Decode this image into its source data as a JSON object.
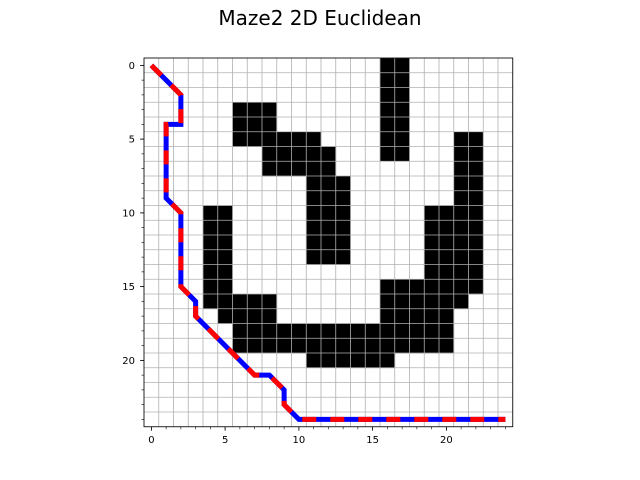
{
  "chart_data": {
    "type": "heatmap",
    "title": "Maze2 2D Euclidean",
    "xlabel": "",
    "ylabel": "",
    "grid_size": 25,
    "xlim": [
      -0.5,
      24.5
    ],
    "ylim": [
      24.5,
      -0.5
    ],
    "x_ticks": [
      0,
      5,
      10,
      15,
      20
    ],
    "y_ticks": [
      0,
      5,
      10,
      15,
      20
    ],
    "minor_ticks": "every 1 unit",
    "grid": true,
    "colors": {
      "obstacle": "#000000",
      "free": "#ffffff",
      "grid": "#b0b0b0",
      "path_a": "#ff0000",
      "path_b": "#0000ff"
    },
    "obstacles": [
      {
        "row": 0,
        "cols": [
          [
            16,
            17
          ]
        ]
      },
      {
        "row": 1,
        "cols": [
          [
            16,
            17
          ]
        ]
      },
      {
        "row": 2,
        "cols": [
          [
            16,
            17
          ]
        ]
      },
      {
        "row": 3,
        "cols": [
          [
            6,
            8
          ],
          [
            16,
            17
          ]
        ]
      },
      {
        "row": 4,
        "cols": [
          [
            6,
            8
          ],
          [
            16,
            17
          ]
        ]
      },
      {
        "row": 5,
        "cols": [
          [
            6,
            11
          ],
          [
            16,
            17
          ],
          [
            21,
            22
          ]
        ]
      },
      {
        "row": 6,
        "cols": [
          [
            8,
            12
          ],
          [
            16,
            17
          ],
          [
            21,
            22
          ]
        ]
      },
      {
        "row": 7,
        "cols": [
          [
            8,
            12
          ],
          [
            21,
            22
          ]
        ]
      },
      {
        "row": 8,
        "cols": [
          [
            11,
            13
          ],
          [
            21,
            22
          ]
        ]
      },
      {
        "row": 9,
        "cols": [
          [
            11,
            13
          ],
          [
            21,
            22
          ]
        ]
      },
      {
        "row": 10,
        "cols": [
          [
            4,
            5
          ],
          [
            11,
            13
          ],
          [
            19,
            22
          ]
        ]
      },
      {
        "row": 11,
        "cols": [
          [
            4,
            5
          ],
          [
            11,
            13
          ],
          [
            19,
            22
          ]
        ]
      },
      {
        "row": 12,
        "cols": [
          [
            4,
            5
          ],
          [
            11,
            13
          ],
          [
            19,
            22
          ]
        ]
      },
      {
        "row": 13,
        "cols": [
          [
            4,
            5
          ],
          [
            11,
            13
          ],
          [
            19,
            22
          ]
        ]
      },
      {
        "row": 14,
        "cols": [
          [
            4,
            5
          ],
          [
            19,
            22
          ]
        ]
      },
      {
        "row": 15,
        "cols": [
          [
            4,
            5
          ],
          [
            16,
            22
          ]
        ]
      },
      {
        "row": 16,
        "cols": [
          [
            4,
            8
          ],
          [
            16,
            21
          ]
        ]
      },
      {
        "row": 17,
        "cols": [
          [
            5,
            8
          ],
          [
            16,
            20
          ]
        ]
      },
      {
        "row": 18,
        "cols": [
          [
            6,
            20
          ]
        ]
      },
      {
        "row": 19,
        "cols": [
          [
            6,
            20
          ]
        ]
      },
      {
        "row": 20,
        "cols": [
          [
            11,
            16
          ]
        ]
      }
    ],
    "path": {
      "x": [
        0,
        2,
        2,
        1,
        1,
        2,
        2,
        3,
        3,
        7,
        8,
        9,
        9,
        10,
        24
      ],
      "y": [
        0,
        2,
        4,
        4,
        9,
        10,
        15,
        16,
        17,
        21,
        21,
        22,
        23,
        24,
        24
      ]
    }
  }
}
